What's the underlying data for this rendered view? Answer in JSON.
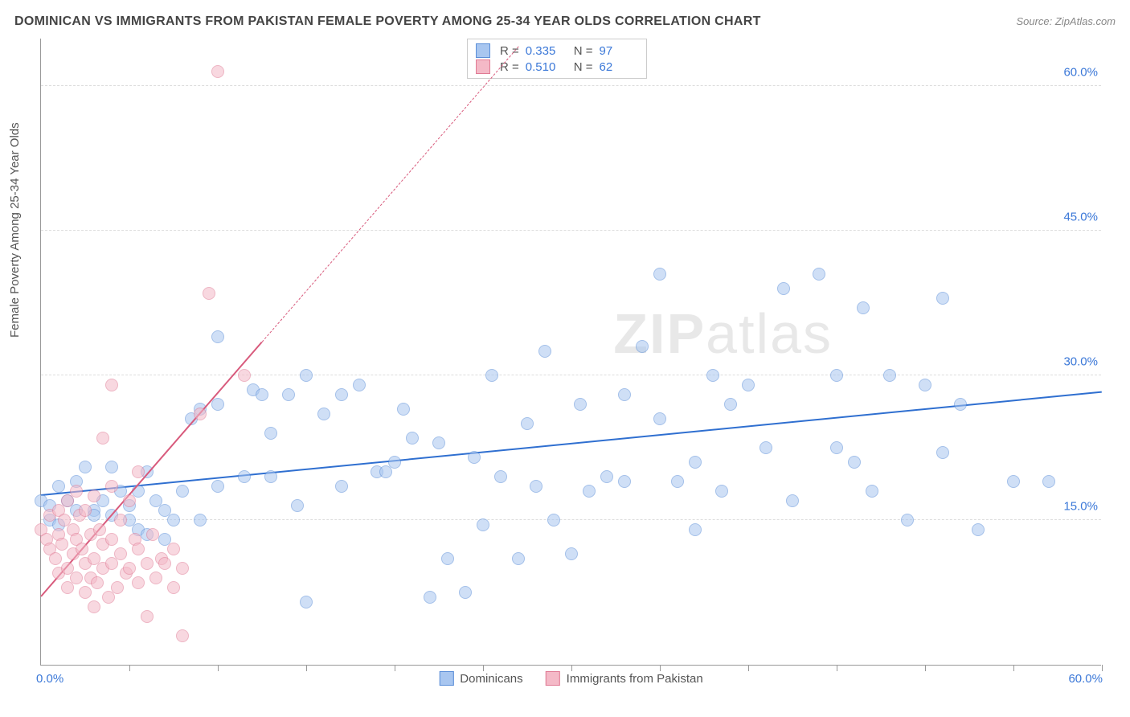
{
  "title": "DOMINICAN VS IMMIGRANTS FROM PAKISTAN FEMALE POVERTY AMONG 25-34 YEAR OLDS CORRELATION CHART",
  "source": "Source: ZipAtlas.com",
  "ylabel": "Female Poverty Among 25-34 Year Olds",
  "watermark": {
    "z": "ZIP",
    "rest": "atlas"
  },
  "chart": {
    "type": "scatter",
    "background_color": "#ffffff",
    "grid_color": "#dddddd",
    "axis_color": "#999999",
    "xlim": [
      0,
      60
    ],
    "ylim": [
      0,
      65
    ],
    "x_ticks": [
      0,
      5,
      10,
      15,
      20,
      25,
      30,
      35,
      40,
      45,
      50,
      55,
      60
    ],
    "y_gridlines": [
      15,
      30,
      45,
      60
    ],
    "y_tick_labels": [
      "15.0%",
      "30.0%",
      "45.0%",
      "60.0%"
    ],
    "x_label_min": "0.0%",
    "x_label_max": "60.0%",
    "axis_label_color": "#3b78d8",
    "axis_label_fontsize": 15,
    "marker_radius": 8,
    "marker_opacity": 0.55,
    "series": [
      {
        "name": "Dominicans",
        "fill": "#a8c6f0",
        "stroke": "#5a8ed8",
        "R": "0.335",
        "N": "97",
        "trend": {
          "x1": 0,
          "y1": 17.5,
          "x2": 60,
          "y2": 28.2,
          "color": "#2f6fd0",
          "dash_after_x": null
        },
        "points": [
          [
            0,
            17
          ],
          [
            0.5,
            16.5
          ],
          [
            0.5,
            15
          ],
          [
            1,
            14.5
          ],
          [
            1.5,
            17
          ],
          [
            1,
            18.5
          ],
          [
            2,
            16
          ],
          [
            2,
            19
          ],
          [
            2.5,
            20.5
          ],
          [
            3,
            16
          ],
          [
            3,
            15.5
          ],
          [
            3.5,
            17
          ],
          [
            4,
            20.5
          ],
          [
            4,
            15.5
          ],
          [
            4.5,
            18
          ],
          [
            5,
            16.5
          ],
          [
            5,
            15
          ],
          [
            5.5,
            18
          ],
          [
            5.5,
            14
          ],
          [
            6,
            20
          ],
          [
            6,
            13.5
          ],
          [
            6.5,
            17
          ],
          [
            7,
            16
          ],
          [
            7,
            13
          ],
          [
            7.5,
            15
          ],
          [
            8,
            18
          ],
          [
            8.5,
            25.5
          ],
          [
            9,
            26.5
          ],
          [
            9,
            15
          ],
          [
            10,
            18.5
          ],
          [
            10,
            27
          ],
          [
            10,
            34
          ],
          [
            11.5,
            19.5
          ],
          [
            12,
            28.5
          ],
          [
            12.5,
            28
          ],
          [
            13,
            24
          ],
          [
            13,
            19.5
          ],
          [
            14,
            28
          ],
          [
            14.5,
            16.5
          ],
          [
            15,
            30
          ],
          [
            15,
            6.5
          ],
          [
            16,
            26
          ],
          [
            17,
            28
          ],
          [
            17,
            18.5
          ],
          [
            18,
            29
          ],
          [
            19,
            20
          ],
          [
            19.5,
            20
          ],
          [
            20,
            21
          ],
          [
            20.5,
            26.5
          ],
          [
            21,
            23.5
          ],
          [
            22,
            7
          ],
          [
            22.5,
            23
          ],
          [
            23,
            11
          ],
          [
            24,
            7.5
          ],
          [
            24.5,
            21.5
          ],
          [
            25,
            14.5
          ],
          [
            25.5,
            30
          ],
          [
            26,
            19.5
          ],
          [
            27,
            11
          ],
          [
            27.5,
            25
          ],
          [
            28,
            18.5
          ],
          [
            28.5,
            32.5
          ],
          [
            29,
            15
          ],
          [
            30,
            11.5
          ],
          [
            30.5,
            27
          ],
          [
            31,
            18
          ],
          [
            32,
            19.5
          ],
          [
            33,
            28
          ],
          [
            33,
            19
          ],
          [
            34,
            33
          ],
          [
            35,
            25.5
          ],
          [
            35,
            40.5
          ],
          [
            36,
            19
          ],
          [
            37,
            21
          ],
          [
            37,
            14
          ],
          [
            38,
            30
          ],
          [
            38.5,
            18
          ],
          [
            39,
            27
          ],
          [
            40,
            29
          ],
          [
            41,
            22.5
          ],
          [
            42,
            39
          ],
          [
            42.5,
            17
          ],
          [
            44,
            40.5
          ],
          [
            45,
            22.5
          ],
          [
            45,
            30
          ],
          [
            46,
            21
          ],
          [
            46.5,
            37
          ],
          [
            47,
            18
          ],
          [
            48,
            30
          ],
          [
            49,
            15
          ],
          [
            50,
            29
          ],
          [
            51,
            22
          ],
          [
            51,
            38
          ],
          [
            52,
            27
          ],
          [
            53,
            14
          ],
          [
            55,
            19
          ],
          [
            57,
            19
          ]
        ]
      },
      {
        "name": "Immigrants from Pakistan",
        "fill": "#f4b9c7",
        "stroke": "#e07a94",
        "R": "0.510",
        "N": "62",
        "trend": {
          "x1": 0,
          "y1": 7,
          "x2": 27,
          "y2": 64,
          "color": "#d85a7c",
          "dash_after_x": 12.5
        },
        "points": [
          [
            0,
            14
          ],
          [
            0.3,
            13
          ],
          [
            0.5,
            12
          ],
          [
            0.5,
            15.5
          ],
          [
            0.8,
            11
          ],
          [
            1,
            16
          ],
          [
            1,
            13.5
          ],
          [
            1,
            9.5
          ],
          [
            1.2,
            12.5
          ],
          [
            1.3,
            15
          ],
          [
            1.5,
            10
          ],
          [
            1.5,
            8
          ],
          [
            1.5,
            17
          ],
          [
            1.8,
            14
          ],
          [
            1.8,
            11.5
          ],
          [
            2,
            13
          ],
          [
            2,
            9
          ],
          [
            2,
            18
          ],
          [
            2.2,
            15.5
          ],
          [
            2.3,
            12
          ],
          [
            2.5,
            7.5
          ],
          [
            2.5,
            10.5
          ],
          [
            2.5,
            16
          ],
          [
            2.8,
            9
          ],
          [
            2.8,
            13.5
          ],
          [
            3,
            6
          ],
          [
            3,
            11
          ],
          [
            3,
            17.5
          ],
          [
            3.2,
            8.5
          ],
          [
            3.3,
            14
          ],
          [
            3.5,
            23.5
          ],
          [
            3.5,
            10
          ],
          [
            3.5,
            12.5
          ],
          [
            3.8,
            7
          ],
          [
            4,
            10.5
          ],
          [
            4,
            18.5
          ],
          [
            4,
            29
          ],
          [
            4,
            13
          ],
          [
            4.3,
            8
          ],
          [
            4.5,
            11.5
          ],
          [
            4.5,
            15
          ],
          [
            4.8,
            9.5
          ],
          [
            5,
            10
          ],
          [
            5,
            17
          ],
          [
            5.3,
            13
          ],
          [
            5.5,
            12
          ],
          [
            5.5,
            8.5
          ],
          [
            5.5,
            20
          ],
          [
            6,
            10.5
          ],
          [
            6,
            5
          ],
          [
            6.3,
            13.5
          ],
          [
            6.5,
            9
          ],
          [
            6.8,
            11
          ],
          [
            7,
            10.5
          ],
          [
            7.5,
            12
          ],
          [
            7.5,
            8
          ],
          [
            8,
            10
          ],
          [
            8,
            3
          ],
          [
            9,
            26
          ],
          [
            9.5,
            38.5
          ],
          [
            10,
            61.5
          ],
          [
            11.5,
            30
          ]
        ]
      }
    ]
  }
}
